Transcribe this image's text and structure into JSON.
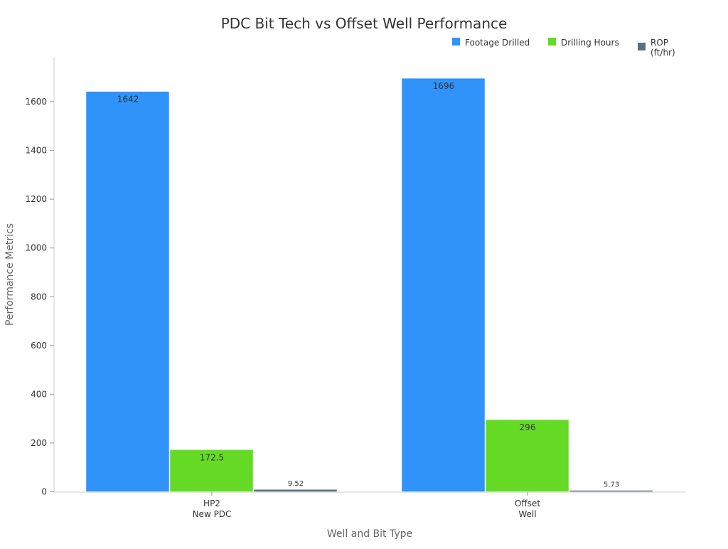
{
  "chart_data": {
    "type": "bar",
    "title": "PDC Bit Tech vs Offset Well Performance",
    "xlabel": "Well and Bit Type",
    "ylabel": "Performance Metrics",
    "categories": [
      [
        "HP2",
        "New PDC"
      ],
      [
        "Offset",
        "Well"
      ]
    ],
    "series": [
      {
        "name": "Footage Drilled",
        "name_lines": [
          "Footage Drilled"
        ],
        "color": "#2f93fa",
        "values": [
          1642,
          1696
        ],
        "labels": [
          "1642",
          "1696"
        ]
      },
      {
        "name": "Drilling Hours",
        "name_lines": [
          "Drilling Hours"
        ],
        "color": "#66db26",
        "values": [
          172.5,
          296
        ],
        "labels": [
          "172.5",
          "296"
        ]
      },
      {
        "name": "ROP (ft/hr)",
        "name_lines": [
          "ROP",
          "(ft/hr)"
        ],
        "color": "#5c6e7c",
        "values": [
          9.52,
          5.73
        ],
        "labels": [
          "9.52",
          "5.73"
        ]
      }
    ],
    "ylim": [
      0,
      1780
    ],
    "yticks": [
      0,
      200,
      400,
      600,
      800,
      1000,
      1200,
      1400,
      1600
    ],
    "grid": false,
    "legend": "top-right"
  }
}
